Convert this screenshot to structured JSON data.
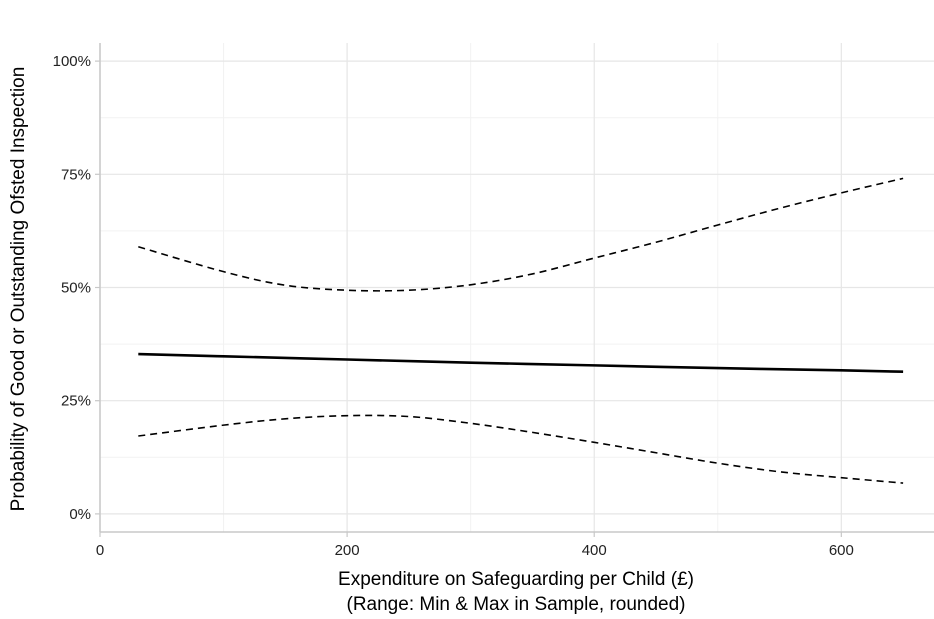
{
  "chart_data": {
    "type": "line",
    "title": "",
    "xlabel": "Expenditure on Safeguarding per Child (£)",
    "xlabel_sub": "(Range: Min & Max in Sample, rounded)",
    "ylabel": "Probability of Good or Outstanding Ofsted Inspection",
    "xlim": [
      0,
      675
    ],
    "ylim": [
      -0.04,
      1.04
    ],
    "x_ticks": [
      0,
      200,
      400,
      600
    ],
    "x_tick_labels": [
      "0",
      "200",
      "400",
      "600"
    ],
    "y_ticks": [
      0,
      0.25,
      0.5,
      0.75,
      1.0
    ],
    "y_tick_labels": [
      "0%",
      "25%",
      "50%",
      "75%",
      "100%"
    ],
    "grid": true,
    "series": [
      {
        "style": "solid",
        "x": [
          31,
          100,
          200,
          300,
          400,
          500,
          600,
          650
        ],
        "y": [
          0.353,
          0.348,
          0.341,
          0.334,
          0.328,
          0.322,
          0.317,
          0.314
        ]
      },
      {
        "style": "dashed",
        "x": [
          31,
          100,
          150,
          200,
          250,
          300,
          350,
          400,
          450,
          500,
          550,
          600,
          650
        ],
        "y": [
          0.59,
          0.535,
          0.505,
          0.494,
          0.494,
          0.506,
          0.53,
          0.565,
          0.6,
          0.638,
          0.675,
          0.709,
          0.741
        ]
      },
      {
        "style": "dashed",
        "x": [
          31,
          100,
          150,
          200,
          250,
          300,
          350,
          400,
          450,
          500,
          550,
          600,
          650
        ],
        "y": [
          0.172,
          0.196,
          0.21,
          0.217,
          0.215,
          0.2,
          0.18,
          0.158,
          0.135,
          0.112,
          0.093,
          0.08,
          0.068
        ]
      }
    ]
  }
}
